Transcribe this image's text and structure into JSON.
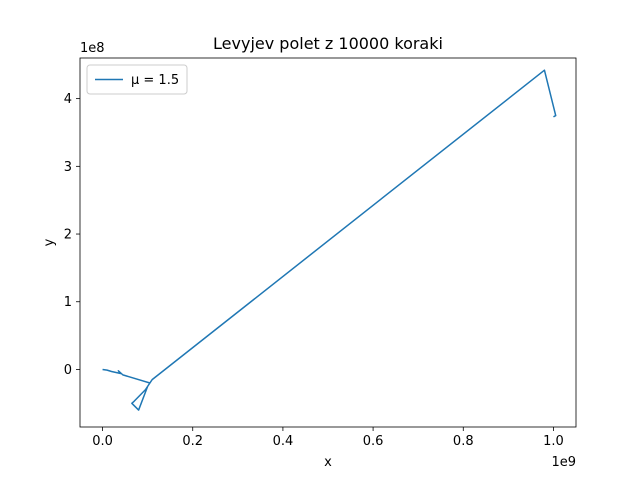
{
  "chart_data": {
    "type": "line",
    "title": "Levyjev polet z 10000 koraki",
    "xlabel": "x",
    "ylabel": "y",
    "x_offset_label": "1e9",
    "y_offset_label": "1e8",
    "xlim": [
      -0.05,
      1.05
    ],
    "ylim": [
      -0.85,
      4.6
    ],
    "xticks": [
      0.0,
      0.2,
      0.4,
      0.6,
      0.8,
      1.0
    ],
    "xtick_labels": [
      "0.0",
      "0.2",
      "0.4",
      "0.6",
      "0.8",
      "1.0"
    ],
    "yticks": [
      0,
      1,
      2,
      3,
      4
    ],
    "ytick_labels": [
      "0",
      "1",
      "2",
      "3",
      "4"
    ],
    "grid": false,
    "legend_position": "upper left",
    "series": [
      {
        "name": "μ = 1.5",
        "color": "#1f77b4",
        "x": [
          0.0,
          0.01,
          0.02,
          0.04,
          0.035,
          0.045,
          0.105,
          0.11,
          0.1,
          0.08,
          0.065,
          0.07,
          0.095,
          0.11,
          0.98,
          1.005,
          1.0
        ],
        "y": [
          0.0,
          -0.01,
          -0.03,
          -0.06,
          -0.02,
          -0.08,
          -0.2,
          -0.15,
          -0.25,
          -0.6,
          -0.5,
          -0.47,
          -0.3,
          -0.15,
          4.42,
          3.75,
          3.73
        ]
      }
    ]
  }
}
